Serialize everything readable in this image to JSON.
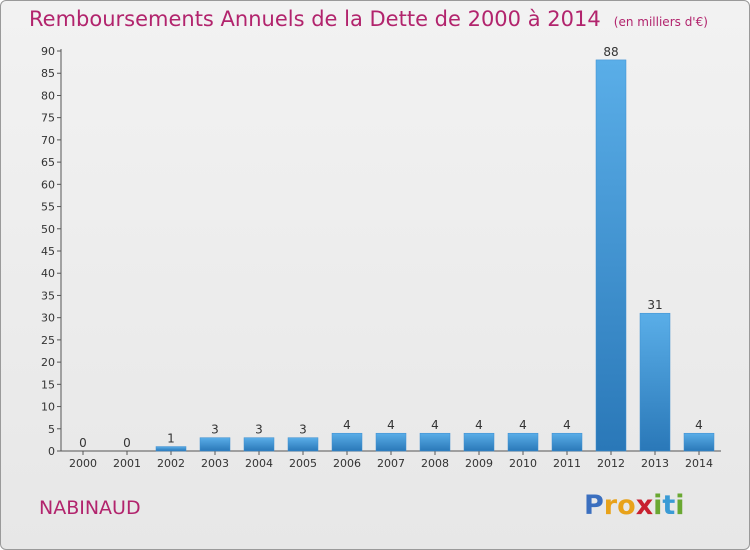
{
  "chart_data": {
    "type": "bar",
    "title": "Remboursements Annuels de la Dette de 2000 à 2014",
    "subtitle": "(en milliers d'€)",
    "categories": [
      "2000",
      "2001",
      "2002",
      "2003",
      "2004",
      "2005",
      "2006",
      "2007",
      "2008",
      "2009",
      "2010",
      "2011",
      "2012",
      "2013",
      "2014"
    ],
    "values": [
      0,
      0,
      1,
      3,
      3,
      3,
      4,
      4,
      4,
      4,
      4,
      4,
      88,
      31,
      4
    ],
    "ylim": [
      0,
      90
    ],
    "yticks": [
      0,
      5,
      10,
      15,
      20,
      25,
      30,
      35,
      40,
      45,
      50,
      55,
      60,
      65,
      70,
      75,
      80,
      85,
      90
    ],
    "grid": false,
    "colors": {
      "bar_light": "#5aaee8",
      "bar_dark": "#2a78b8",
      "title": "#b2246d"
    }
  },
  "commune": "NABINAUD",
  "logo": {
    "letters": [
      "P",
      "r",
      "o",
      "x",
      "i",
      "t",
      "i"
    ],
    "colors": [
      "#3b6fbf",
      "#e8a21a",
      "#e8a21a",
      "#c8202f",
      "#6aa832",
      "#3a9bd5",
      "#6aa832"
    ]
  }
}
